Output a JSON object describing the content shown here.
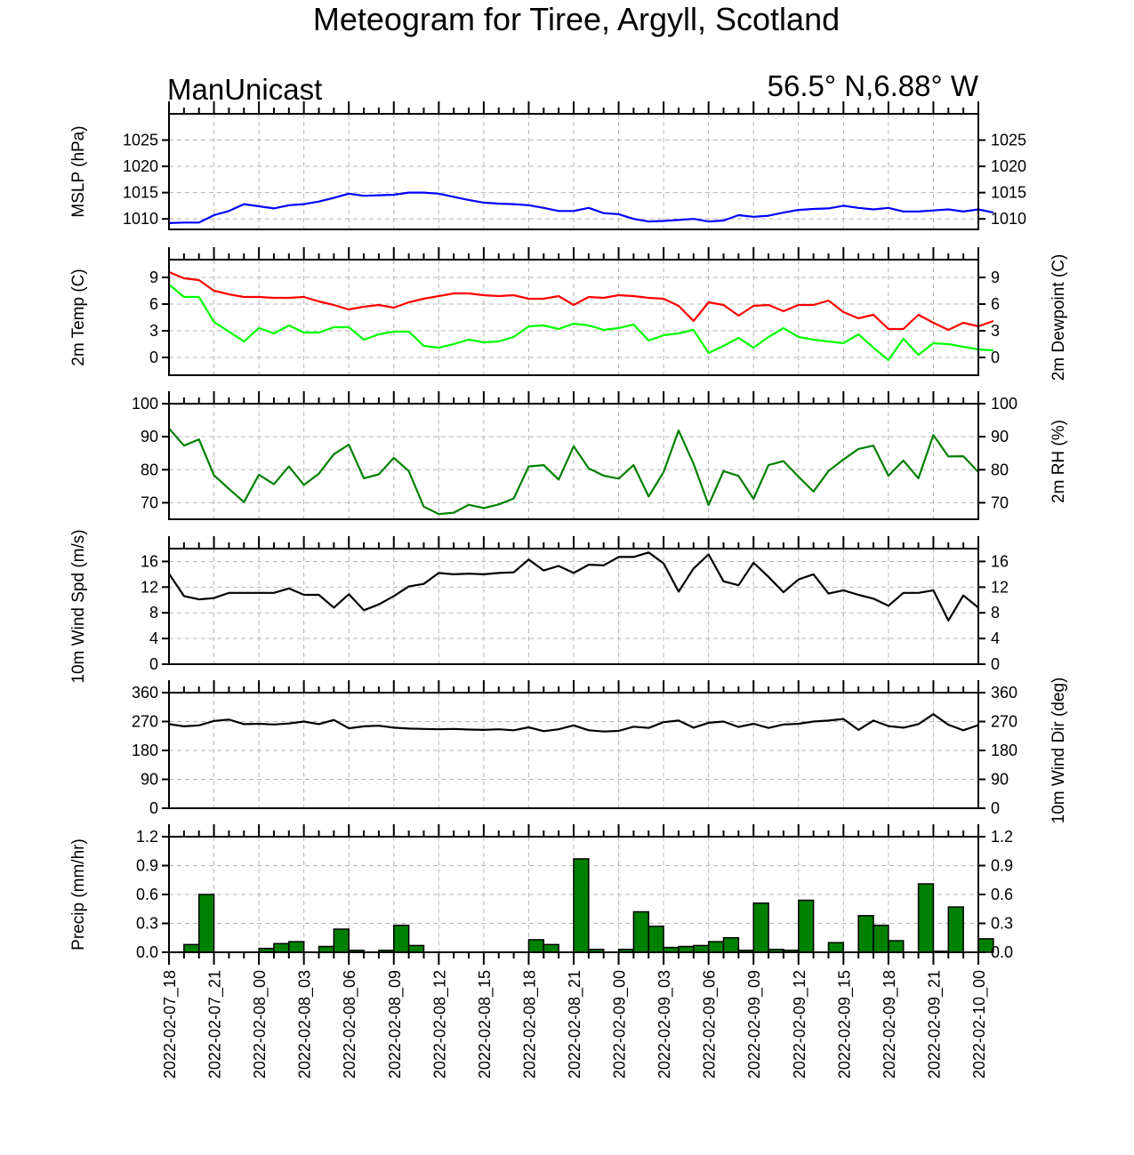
{
  "title": "Meteogram for Tiree, Argyll, Scotland",
  "model": "ManUnicast",
  "location": "56.5° N,6.88° W",
  "x_labels": [
    "2022-02-07_18",
    "2022-02-07_21",
    "2022-02-08_00",
    "2022-02-08_03",
    "2022-02-08_06",
    "2022-02-08_09",
    "2022-02-08_12",
    "2022-02-08_15",
    "2022-02-08_18",
    "2022-02-08_21",
    "2022-02-09_00",
    "2022-02-09_03",
    "2022-02-09_06",
    "2022-02-09_09",
    "2022-02-09_12",
    "2022-02-09_15",
    "2022-02-09_18",
    "2022-02-09_21",
    "2022-02-10_00"
  ],
  "colors": {
    "mslp": "#0000ff",
    "temp": "#ff0000",
    "dewpoint": "#00ff00",
    "rh": "#008000",
    "wind": "#000000",
    "precip": "#008000"
  },
  "chart_data": [
    {
      "type": "line",
      "ylabel_left": "MSLP (hPa)",
      "ylabel_right": "",
      "ylim": [
        1008,
        1030
      ],
      "yticks": [
        1010,
        1015,
        1020,
        1025
      ],
      "grid": true,
      "series": [
        {
          "color": "#0000ff",
          "values": [
            1009.2,
            1009.3,
            1009.3,
            1010.7,
            1011.5,
            1012.8,
            1012.4,
            1012,
            1012.6,
            1012.8,
            1013.3,
            1014,
            1014.8,
            1014.4,
            1014.5,
            1014.6,
            1015,
            1015,
            1014.8,
            1014.2,
            1013.6,
            1013.1,
            1012.9,
            1012.8,
            1012.6,
            1012.1,
            1011.5,
            1011.5,
            1012.1,
            1011.1,
            1010.9,
            1010,
            1009.5,
            1009.6,
            1009.8,
            1010,
            1009.5,
            1009.7,
            1010.7,
            1010.4,
            1010.6,
            1011.2,
            1011.7,
            1011.9,
            1012,
            1012.5,
            1012.1,
            1011.8,
            1012.1,
            1011.4,
            1011.4,
            1011.6,
            1011.8,
            1011.4,
            1011.8,
            1011.2
          ]
        }
      ]
    },
    {
      "type": "line",
      "ylabel_left": "2m Temp (C)",
      "ylabel_right": "2m Dewpoint (C)",
      "ylim": [
        -2,
        11
      ],
      "yticks": [
        0,
        3,
        6,
        9
      ],
      "grid": true,
      "series": [
        {
          "color": "#ff0000",
          "values": [
            9.6,
            8.9,
            8.7,
            7.5,
            7.1,
            6.8,
            6.8,
            6.7,
            6.7,
            6.8,
            6.3,
            5.9,
            5.4,
            5.7,
            5.9,
            5.6,
            6.2,
            6.6,
            6.9,
            7.2,
            7.2,
            7,
            6.9,
            7,
            6.6,
            6.6,
            6.9,
            5.9,
            6.8,
            6.7,
            7,
            6.9,
            6.7,
            6.6,
            5.8,
            4.1,
            6.2,
            5.9,
            4.7,
            5.8,
            5.9,
            5.2,
            5.9,
            5.9,
            6.4,
            5.1,
            4.4,
            4.8,
            3.2,
            3.2,
            4.8,
            3.9,
            3.1,
            3.9,
            3.5,
            4.1
          ]
        },
        {
          "color": "#00ff00",
          "values": [
            8.2,
            6.8,
            6.8,
            4,
            2.9,
            1.8,
            3.3,
            2.7,
            3.6,
            2.8,
            2.8,
            3.4,
            3.4,
            2,
            2.6,
            2.9,
            2.9,
            1.3,
            1.1,
            1.5,
            2,
            1.7,
            1.8,
            2.3,
            3.5,
            3.6,
            3.2,
            3.8,
            3.6,
            3.1,
            3.3,
            3.7,
            1.9,
            2.5,
            2.7,
            3.1,
            0.5,
            1.3,
            2.2,
            1.1,
            2.3,
            3.3,
            2.3,
            2,
            1.8,
            1.6,
            2.6,
            1.1,
            -0.3,
            2.1,
            0.3,
            1.6,
            1.5,
            1.2,
            0.9,
            0.8
          ]
        }
      ]
    },
    {
      "type": "line",
      "ylabel_left": "",
      "ylabel_right": "2m RH (%)",
      "ylim": [
        65,
        100
      ],
      "yticks": [
        70,
        80,
        90,
        100
      ],
      "grid": true,
      "series": [
        {
          "color": "#008000",
          "values": [
            92.5,
            87.3,
            89.2,
            78.3,
            74.2,
            70.2,
            78.5,
            75.6,
            81,
            75.4,
            78.8,
            84.7,
            87.6,
            77.4,
            78.6,
            83.6,
            79.6,
            68.8,
            66.6,
            67,
            69.4,
            68.4,
            69.5,
            71.3,
            81,
            81.4,
            77,
            87.1,
            80.4,
            78.2,
            77.3,
            81.4,
            71.9,
            79.3,
            91.9,
            81.8,
            69.3,
            79.6,
            78.1,
            71.2,
            81.4,
            82.6,
            77.9,
            73.4,
            79.6,
            83.1,
            86.3,
            87.3,
            78.2,
            82.8,
            77.4,
            90.5,
            84,
            84.1,
            79.3
          ]
        }
      ]
    },
    {
      "type": "line",
      "ylabel_left": "10m Wind Spd (m/s)",
      "ylabel_right": "",
      "ylim": [
        0,
        18
      ],
      "yticks": [
        0,
        4,
        8,
        12,
        16
      ],
      "grid": true,
      "series": [
        {
          "color": "#000000",
          "values": [
            14.1,
            10.6,
            10.1,
            10.3,
            11.1,
            11.1,
            11.1,
            11.1,
            11.8,
            10.8,
            10.8,
            8.8,
            10.9,
            8.4,
            9.3,
            10.6,
            12.1,
            12.5,
            14.2,
            14,
            14.1,
            14,
            14.2,
            14.3,
            16.3,
            14.6,
            15.3,
            14.2,
            15.5,
            15.4,
            16.7,
            16.7,
            17.4,
            15.7,
            11.3,
            14.9,
            17.1,
            12.9,
            12.3,
            15.8,
            13.6,
            11.2,
            13.2,
            14,
            11,
            11.5,
            10.8,
            10.2,
            9.1,
            11.1,
            11.1,
            11.5,
            6.8,
            10.7,
            8.8
          ]
        }
      ]
    },
    {
      "type": "line",
      "ylabel_left": "",
      "ylabel_right": "10m Wind Dir (deg)",
      "ylim": [
        0,
        360
      ],
      "yticks": [
        0,
        90,
        180,
        270,
        360
      ],
      "grid": true,
      "series": [
        {
          "color": "#000000",
          "values": [
            262,
            255,
            258,
            272,
            276,
            262,
            263,
            261,
            264,
            270,
            262,
            275,
            249,
            255,
            257,
            251,
            248,
            247,
            246,
            247,
            245,
            244,
            246,
            243,
            252,
            240,
            246,
            258,
            243,
            239,
            241,
            254,
            250,
            268,
            273,
            251,
            266,
            270,
            253,
            263,
            250,
            261,
            263,
            270,
            273,
            278,
            244,
            273,
            256,
            251,
            262,
            293,
            260,
            243,
            259
          ]
        }
      ]
    },
    {
      "type": "bar",
      "ylabel_left": "Precip (mm/hr)",
      "ylabel_right": "",
      "ylim": [
        0,
        1.2
      ],
      "yticks": [
        "0.0",
        "0.3",
        "0.6",
        "0.9",
        "1.2"
      ],
      "grid": true,
      "series": [
        {
          "color": "#008000",
          "values": [
            0,
            0.08,
            0.6,
            0,
            0,
            0,
            0.04,
            0.09,
            0.11,
            0,
            0.06,
            0.24,
            0.02,
            0,
            0.02,
            0.28,
            0.07,
            0,
            0,
            0,
            0,
            0,
            0,
            0,
            0.13,
            0.08,
            0,
            0.97,
            0.03,
            0,
            0.03,
            0.42,
            0.27,
            0.05,
            0.06,
            0.07,
            0.11,
            0.15,
            0.02,
            0.51,
            0.03,
            0.02,
            0.54,
            0,
            0.1,
            0,
            0.38,
            0.28,
            0.12,
            0,
            0.71,
            0.01,
            0.47,
            0,
            0.14
          ]
        }
      ]
    }
  ]
}
